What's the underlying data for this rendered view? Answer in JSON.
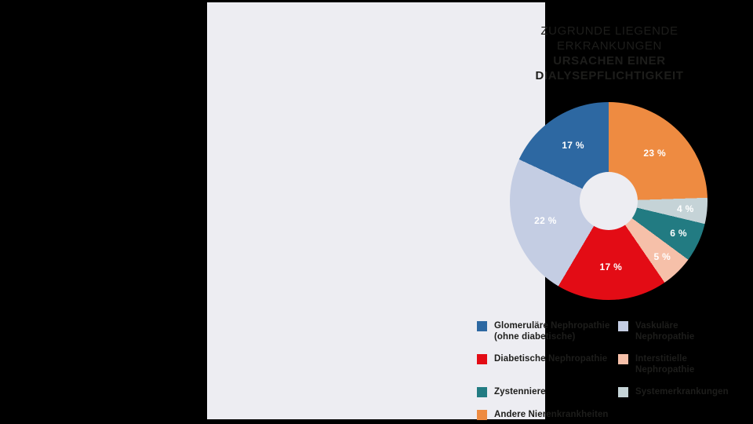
{
  "page": {
    "background": "#000000",
    "card_background": "#EDEDF2",
    "text_color": "#1D1D1B"
  },
  "title": {
    "lines": [
      "ZUGRUNDE LIEGENDE",
      "ERKRANKUNGEN",
      "URSACHEN EINER",
      "DIALYSEPFLICHTIGKEIT"
    ]
  },
  "chart_data": {
    "type": "pie",
    "donut": true,
    "title": "Zugrunde liegende Erkrankungen — Ursachen einer Dialysepflichtigkeit",
    "unit": "%",
    "start_angle_deg": 0,
    "clockwise": true,
    "inner_radius_ratio": 0.3,
    "legend_position": "bottom",
    "slices": [
      {
        "label": "Andere Nierenkrankheiten",
        "value": 23,
        "display": "23 %",
        "color": "#EE8B41"
      },
      {
        "label": "Systemerkrankungen",
        "value": 4,
        "display": "4 %",
        "color": "#C5D3D7"
      },
      {
        "label": "Zystenniere",
        "value": 6,
        "display": "6 %",
        "color": "#227B82"
      },
      {
        "label": "Interstitielle Nephropathie",
        "value": 5,
        "display": "5 %",
        "color": "#F6C0A9"
      },
      {
        "label": "Diabetische Nephropathie",
        "value": 17,
        "display": "17 %",
        "color": "#E30C15"
      },
      {
        "label": "Vaskuläre Nephropathie",
        "value": 22,
        "display": "22 %",
        "color": "#C4CDE3"
      },
      {
        "label": "Glomeruläre Nephropathie (ohne diabetische)",
        "value": 17,
        "display": "17 %",
        "color": "#2D68A2"
      }
    ]
  },
  "legend": {
    "columns": [
      {
        "items": [
          {
            "color": "#2D68A2",
            "lines": [
              "Glomeruläre Nephropathie",
              "(ohne diabetische)"
            ]
          },
          {
            "color": "#E30C15",
            "lines": [
              "Diabetische Nephropathie"
            ]
          },
          {
            "color": "#227B82",
            "lines": [
              "Zystenniere"
            ]
          },
          {
            "color": "#EE8B41",
            "lines": [
              "Andere Nierenkrankheiten"
            ]
          }
        ]
      },
      {
        "items": [
          {
            "color": "#C4CDE3",
            "lines": [
              "Vaskuläre Nephropathie"
            ]
          },
          {
            "color": "#F6C0A9",
            "lines": [
              "Interstitielle Nephropathie"
            ]
          },
          {
            "color": "#C5D3D7",
            "lines": [
              "Systemerkrankungen"
            ]
          }
        ]
      }
    ]
  }
}
